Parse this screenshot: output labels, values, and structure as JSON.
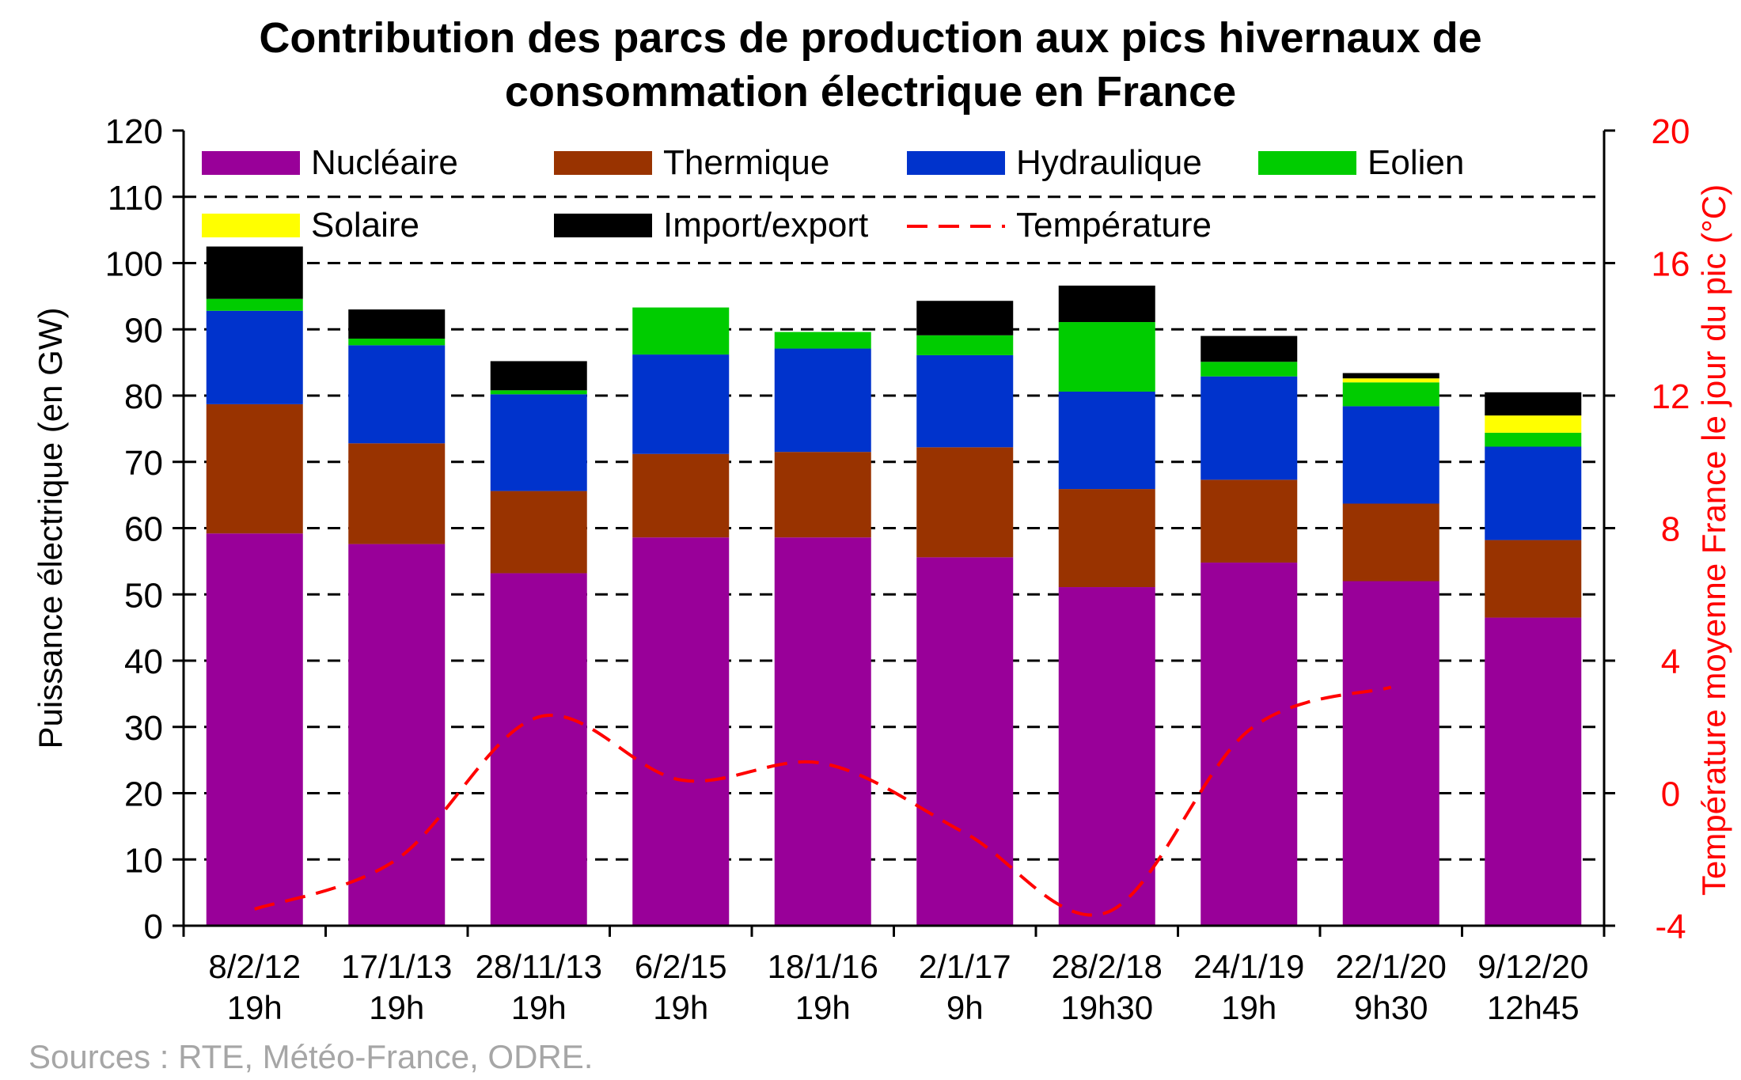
{
  "chart_data": {
    "type": "bar",
    "stacked": true,
    "title": [
      "Contribution des parcs de production aux pics hivernaux de",
      "consommation électrique en France"
    ],
    "ylabel": "Puissance électrique (en GW)",
    "y2label": "Température moyenne France le jour du pic (°C)",
    "ylim": [
      0,
      120
    ],
    "y2lim": [
      -4,
      20
    ],
    "yticks": [
      0,
      10,
      20,
      30,
      40,
      50,
      60,
      70,
      80,
      90,
      100,
      110,
      120
    ],
    "y2ticks": [
      -4,
      0,
      4,
      8,
      12,
      16,
      20
    ],
    "grid": "horizontal dashed",
    "legend_position": "top, inside plot",
    "categories": [
      [
        "8/2/12",
        "19h"
      ],
      [
        "17/1/13",
        "19h"
      ],
      [
        "28/11/13",
        "19h"
      ],
      [
        "6/2/15",
        "19h"
      ],
      [
        "18/1/16",
        "19h"
      ],
      [
        "2/1/17",
        "9h"
      ],
      [
        "28/2/18",
        "19h30"
      ],
      [
        "24/1/19",
        "19h"
      ],
      [
        "22/1/20",
        "9h30"
      ],
      [
        "9/12/20",
        "12h45"
      ]
    ],
    "series": [
      {
        "name": "Nucléaire",
        "color": "#990099",
        "values": [
          59.2,
          57.6,
          53.2,
          58.6,
          58.6,
          55.6,
          51.1,
          54.8,
          52.0,
          46.5
        ]
      },
      {
        "name": "Thermique",
        "color": "#993300",
        "values": [
          19.5,
          15.2,
          12.4,
          12.6,
          12.9,
          16.6,
          14.8,
          12.5,
          11.7,
          11.7
        ]
      },
      {
        "name": "Hydraulique",
        "color": "#0033cc",
        "values": [
          14.1,
          14.8,
          14.6,
          15.0,
          15.6,
          13.9,
          14.7,
          15.6,
          14.7,
          14.1
        ]
      },
      {
        "name": "Eolien",
        "color": "#00cc00",
        "values": [
          1.8,
          1.0,
          0.6,
          7.1,
          2.5,
          3.0,
          10.5,
          2.2,
          3.6,
          2.1
        ]
      },
      {
        "name": "Solaire",
        "color": "#ffff00",
        "values": [
          0.0,
          0.0,
          0.0,
          0.0,
          0.0,
          0.0,
          0.0,
          0.0,
          0.6,
          2.6
        ]
      },
      {
        "name": "Import/export",
        "color": "#000000",
        "values": [
          7.9,
          4.4,
          4.4,
          0.0,
          0.0,
          5.2,
          5.5,
          3.9,
          0.8,
          3.5
        ]
      }
    ],
    "line_series": {
      "name": "Température",
      "color": "#ff0000",
      "axis": "right",
      "values": [
        -3.5,
        -2.0,
        2.3,
        0.4,
        0.9,
        -1.2,
        -3.6,
        1.9,
        3.2,
        null
      ]
    },
    "source": "Sources : RTE, Météo-France, ODRE."
  }
}
